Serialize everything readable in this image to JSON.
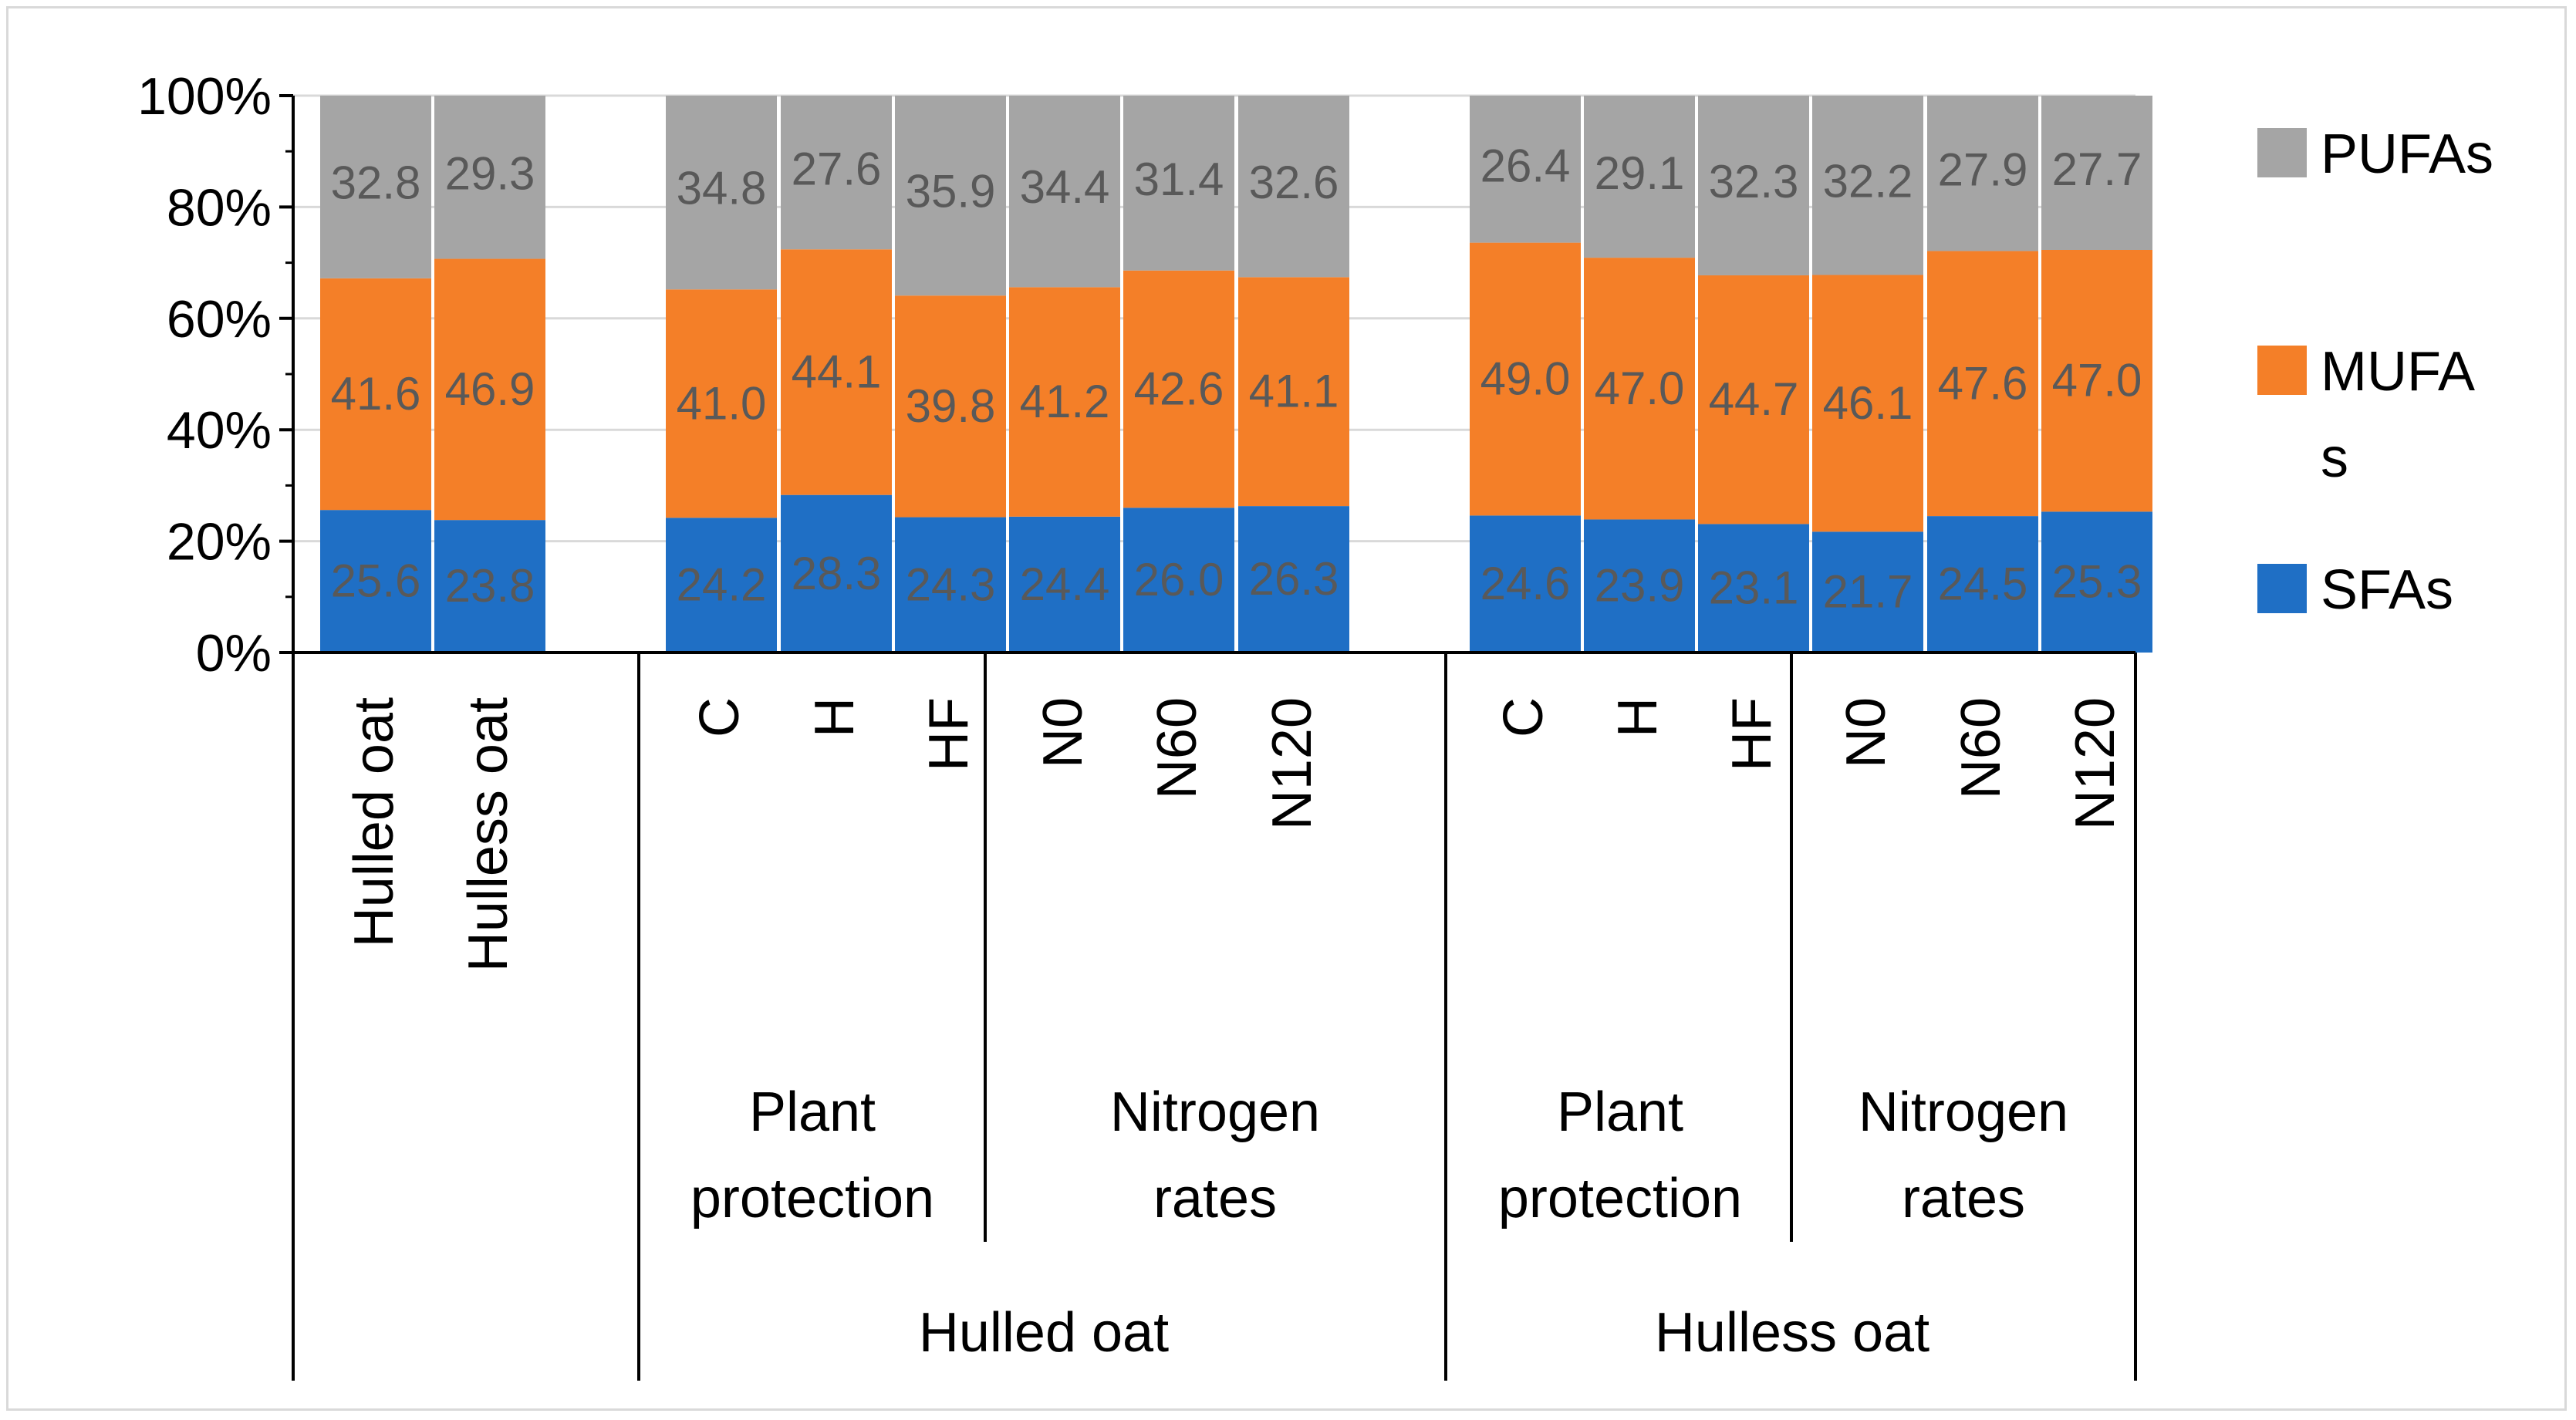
{
  "chart_data": {
    "type": "bar",
    "stacked": true,
    "percent_stacked": true,
    "y_ticks": [
      "0%",
      "20%",
      "40%",
      "60%",
      "80%",
      "100%"
    ],
    "ylim": [
      0,
      100
    ],
    "grid": true,
    "legend_position": "right",
    "categories": [
      {
        "label": "Hulled oat",
        "sub_group": "",
        "group": ""
      },
      {
        "label": "Hulless oat",
        "sub_group": "",
        "group": ""
      },
      {
        "label": "C",
        "sub_group": "Plant protection",
        "group": "Hulled oat"
      },
      {
        "label": "H",
        "sub_group": "Plant protection",
        "group": "Hulled oat"
      },
      {
        "label": "HF",
        "sub_group": "Plant protection",
        "group": "Hulled oat"
      },
      {
        "label": "N0",
        "sub_group": "Nitrogen rates",
        "group": "Hulled oat"
      },
      {
        "label": "N60",
        "sub_group": "Nitrogen rates",
        "group": "Hulled oat"
      },
      {
        "label": "N120",
        "sub_group": "Nitrogen rates",
        "group": "Hulled oat"
      },
      {
        "label": "C",
        "sub_group": "Plant protection",
        "group": "Hulless oat"
      },
      {
        "label": "H",
        "sub_group": "Plant protection",
        "group": "Hulless oat"
      },
      {
        "label": "HF",
        "sub_group": "Plant protection",
        "group": "Hulless oat"
      },
      {
        "label": "N0",
        "sub_group": "Nitrogen rates",
        "group": "Hulless oat"
      },
      {
        "label": "N60",
        "sub_group": "Nitrogen rates",
        "group": "Hulless oat"
      },
      {
        "label": "N120",
        "sub_group": "Nitrogen rates",
        "group": "Hulless oat"
      }
    ],
    "series": [
      {
        "name": "SFAs",
        "color": "#1f6fc5",
        "values": [
          "25.6",
          "23.8",
          "24.2",
          "28.3",
          "24.3",
          "24.4",
          "26.0",
          "26.3",
          "24.6",
          "23.9",
          "23.1",
          "21.7",
          "24.5",
          "25.3"
        ]
      },
      {
        "name": "MUFAs",
        "color": "#f47f28",
        "values": [
          "41.6",
          "46.9",
          "41.0",
          "44.1",
          "39.8",
          "41.2",
          "42.6",
          "41.1",
          "49.0",
          "47.0",
          "44.7",
          "46.1",
          "47.6",
          "47.0"
        ]
      },
      {
        "name": "PUFAs",
        "color": "#a5a5a5",
        "values": [
          "32.8",
          "29.3",
          "34.8",
          "27.6",
          "35.9",
          "34.4",
          "31.4",
          "32.6",
          "26.4",
          "29.1",
          "32.3",
          "32.2",
          "27.9",
          "27.7"
        ]
      }
    ],
    "legend": [
      {
        "series": "PUFAs",
        "lines": [
          "PUFAs"
        ]
      },
      {
        "series": "MUFAs",
        "lines": [
          "MUFA",
          "s"
        ]
      },
      {
        "series": "SFAs",
        "lines": [
          "SFAs"
        ]
      }
    ],
    "sub_groups": [
      {
        "lines": [
          "Plant",
          "protection"
        ]
      },
      {
        "lines": [
          "Nitrogen",
          "rates"
        ]
      },
      {
        "lines": [
          "Plant",
          "protection"
        ]
      },
      {
        "lines": [
          "Nitrogen",
          "rates"
        ]
      }
    ],
    "groups": [
      {
        "label": "Hulled oat"
      },
      {
        "label": "Hulless oat"
      }
    ]
  }
}
